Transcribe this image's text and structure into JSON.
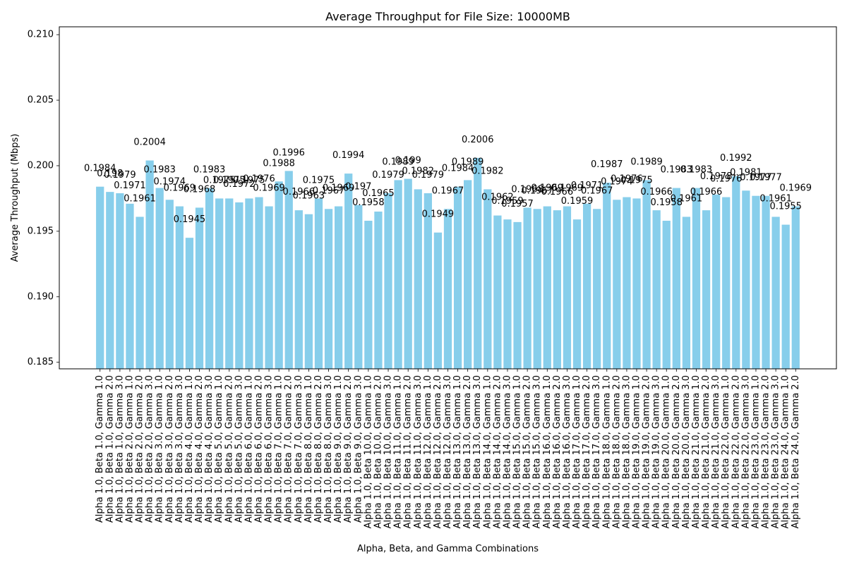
{
  "chart_data": {
    "type": "bar",
    "title": "Average Throughput for File Size: 10000MB",
    "xlabel": "Alpha, Beta, and Gamma Combinations",
    "ylabel": "Average Throughput (Mbps)",
    "ylim": [
      0.1845,
      0.2106
    ],
    "yticks": [
      "0.185",
      "0.190",
      "0.195",
      "0.200",
      "0.205",
      "0.210"
    ],
    "ytick_values": [
      0.185,
      0.19,
      0.195,
      0.2,
      0.205,
      0.21
    ],
    "grid": false,
    "bar_color": "#87ceeb",
    "categories": [
      "Alpha 1.0, Beta 1.0, Gamma 1.0",
      "Alpha 1.0, Beta 1.0, Gamma 2.0",
      "Alpha 1.0, Beta 1.0, Gamma 3.0",
      "Alpha 1.0, Beta 2.0, Gamma 1.0",
      "Alpha 1.0, Beta 2.0, Gamma 2.0",
      "Alpha 1.0, Beta 2.0, Gamma 3.0",
      "Alpha 1.0, Beta 3.0, Gamma 1.0",
      "Alpha 1.0, Beta 3.0, Gamma 2.0",
      "Alpha 1.0, Beta 3.0, Gamma 3.0",
      "Alpha 1.0, Beta 4.0, Gamma 1.0",
      "Alpha 1.0, Beta 4.0, Gamma 2.0",
      "Alpha 1.0, Beta 4.0, Gamma 3.0",
      "Alpha 1.0, Beta 5.0, Gamma 1.0",
      "Alpha 1.0, Beta 5.0, Gamma 2.0",
      "Alpha 1.0, Beta 5.0, Gamma 3.0",
      "Alpha 1.0, Beta 6.0, Gamma 1.0",
      "Alpha 1.0, Beta 6.0, Gamma 2.0",
      "Alpha 1.0, Beta 6.0, Gamma 3.0",
      "Alpha 1.0, Beta 7.0, Gamma 1.0",
      "Alpha 1.0, Beta 7.0, Gamma 2.0",
      "Alpha 1.0, Beta 7.0, Gamma 3.0",
      "Alpha 1.0, Beta 8.0, Gamma 1.0",
      "Alpha 1.0, Beta 8.0, Gamma 2.0",
      "Alpha 1.0, Beta 8.0, Gamma 3.0",
      "Alpha 1.0, Beta 9.0, Gamma 1.0",
      "Alpha 1.0, Beta 9.0, Gamma 2.0",
      "Alpha 1.0, Beta 9.0, Gamma 3.0",
      "Alpha 1.0, Beta 10.0, Gamma 1.0",
      "Alpha 1.0, Beta 10.0, Gamma 2.0",
      "Alpha 1.0, Beta 10.0, Gamma 3.0",
      "Alpha 1.0, Beta 11.0, Gamma 1.0",
      "Alpha 1.0, Beta 11.0, Gamma 2.0",
      "Alpha 1.0, Beta 11.0, Gamma 3.0",
      "Alpha 1.0, Beta 12.0, Gamma 1.0",
      "Alpha 1.0, Beta 12.0, Gamma 2.0",
      "Alpha 1.0, Beta 12.0, Gamma 3.0",
      "Alpha 1.0, Beta 13.0, Gamma 1.0",
      "Alpha 1.0, Beta 13.0, Gamma 2.0",
      "Alpha 1.0, Beta 13.0, Gamma 3.0",
      "Alpha 1.0, Beta 14.0, Gamma 1.0",
      "Alpha 1.0, Beta 14.0, Gamma 2.0",
      "Alpha 1.0, Beta 14.0, Gamma 3.0",
      "Alpha 1.0, Beta 15.0, Gamma 1.0",
      "Alpha 1.0, Beta 15.0, Gamma 2.0",
      "Alpha 1.0, Beta 15.0, Gamma 3.0",
      "Alpha 1.0, Beta 16.0, Gamma 1.0",
      "Alpha 1.0, Beta 16.0, Gamma 2.0",
      "Alpha 1.0, Beta 16.0, Gamma 3.0",
      "Alpha 1.0, Beta 17.0, Gamma 1.0",
      "Alpha 1.0, Beta 17.0, Gamma 2.0",
      "Alpha 1.0, Beta 17.0, Gamma 3.0",
      "Alpha 1.0, Beta 18.0, Gamma 1.0",
      "Alpha 1.0, Beta 18.0, Gamma 2.0",
      "Alpha 1.0, Beta 18.0, Gamma 3.0",
      "Alpha 1.0, Beta 19.0, Gamma 1.0",
      "Alpha 1.0, Beta 19.0, Gamma 2.0",
      "Alpha 1.0, Beta 19.0, Gamma 3.0",
      "Alpha 1.0, Beta 20.0, Gamma 1.0",
      "Alpha 1.0, Beta 20.0, Gamma 2.0",
      "Alpha 1.0, Beta 20.0, Gamma 3.0",
      "Alpha 1.0, Beta 21.0, Gamma 1.0",
      "Alpha 1.0, Beta 21.0, Gamma 2.0",
      "Alpha 1.0, Beta 21.0, Gamma 3.0",
      "Alpha 1.0, Beta 22.0, Gamma 1.0",
      "Alpha 1.0, Beta 22.0, Gamma 2.0",
      "Alpha 1.0, Beta 22.0, Gamma 3.0",
      "Alpha 1.0, Beta 23.0, Gamma 1.0",
      "Alpha 1.0, Beta 23.0, Gamma 2.0",
      "Alpha 1.0, Beta 23.0, Gamma 3.0",
      "Alpha 1.0, Beta 24.0, Gamma 1.0",
      "Alpha 1.0, Beta 24.0, Gamma 2.0"
    ],
    "values": [
      0.1984,
      0.198,
      0.1979,
      0.1971,
      0.1961,
      0.2004,
      0.1983,
      0.1974,
      0.1969,
      0.1945,
      0.1968,
      0.1983,
      0.1975,
      0.1975,
      0.1972,
      0.1975,
      0.1976,
      0.1969,
      0.1988,
      0.1996,
      0.1966,
      0.1963,
      0.1975,
      0.1967,
      0.1969,
      0.1994,
      0.197,
      0.1958,
      0.1965,
      0.1979,
      0.1989,
      0.199,
      0.1982,
      0.1979,
      0.1949,
      0.1967,
      0.1984,
      0.1989,
      0.2006,
      0.1982,
      0.1962,
      0.1959,
      0.1957,
      0.1968,
      0.1967,
      0.1969,
      0.1966,
      0.1969,
      0.1959,
      0.1971,
      0.1967,
      0.1987,
      0.1974,
      0.1976,
      0.1975,
      0.1989,
      0.1966,
      0.1958,
      0.1983,
      0.1961,
      0.1983,
      0.1966,
      0.1978,
      0.1976,
      0.1992,
      0.1981,
      0.1977,
      0.1977,
      0.1961,
      0.1955,
      0.1969
    ],
    "value_labels": [
      "0.1984",
      "0.198",
      "0.1979",
      "0.1971",
      "0.1961",
      "0.2004",
      "0.1983",
      "0.1974",
      "0.1969",
      "0.1945",
      "0.1968",
      "0.1983",
      "0.1975",
      "0.1975",
      "0.1972",
      "0.1975",
      "0.1976",
      "0.1969",
      "0.1988",
      "0.1996",
      "0.1966",
      "0.1963",
      "0.1975",
      "0.1967",
      "0.1969",
      "0.1994",
      "0.197",
      "0.1958",
      "0.1965",
      "0.1979",
      "0.1989",
      "0.199",
      "0.1982",
      "0.1979",
      "0.1949",
      "0.1967",
      "0.1984",
      "0.1989",
      "0.2006",
      "0.1982",
      "0.1962",
      "0.1959",
      "0.1957",
      "0.1968",
      "0.1967",
      "0.1969",
      "0.1966",
      "0.1969",
      "0.1959",
      "0.1971",
      "0.1967",
      "0.1987",
      "0.1974",
      "0.1976",
      "0.1975",
      "0.1989",
      "0.1966",
      "0.1958",
      "0.1983",
      "0.1961",
      "0.1983",
      "0.1966",
      "0.1978",
      "0.1976",
      "0.1992",
      "0.1981",
      "0.1977",
      "0.1977",
      "0.1961",
      "0.1955",
      "0.1969"
    ]
  }
}
